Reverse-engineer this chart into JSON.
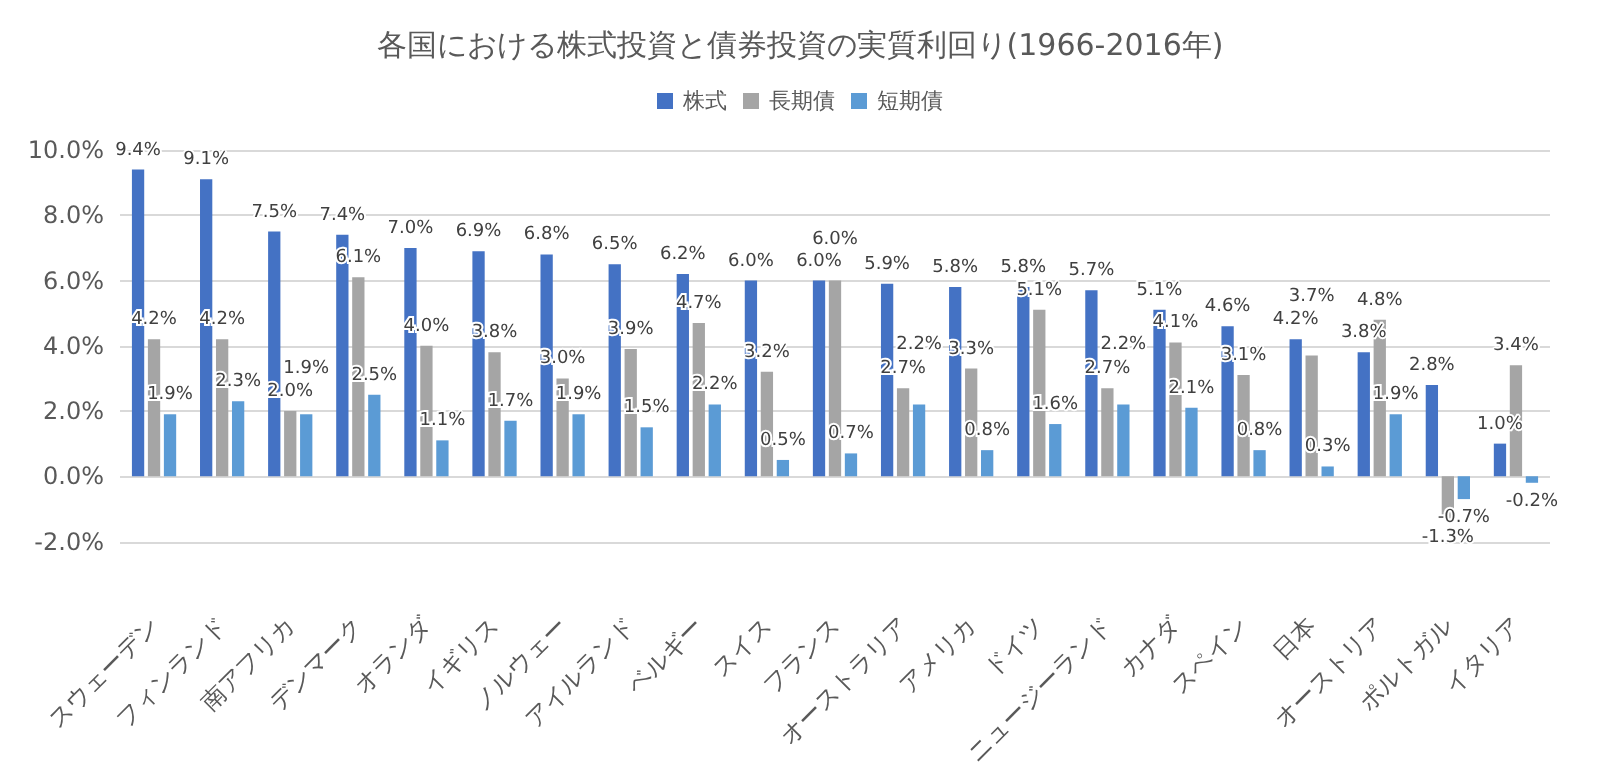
{
  "chart_data": {
    "type": "bar",
    "title": "各国における株式投資と債券投資の実質利回り(1966-2016年)",
    "categories": [
      "スウェーデン",
      "フィンランド",
      "南アフリカ",
      "デンマーク",
      "オランダ",
      "イギリス",
      "ノルウェー",
      "アイルランド",
      "ベルギー",
      "スイス",
      "フランス",
      "オーストラリア",
      "アメリカ",
      "ドイツ",
      "ニュージーランド",
      "カナダ",
      "スペイン",
      "日本",
      "オーストリア",
      "ポルトガル",
      "イタリア"
    ],
    "series": [
      {
        "name": "株式",
        "color": "#4472c4",
        "values": [
          9.4,
          9.1,
          7.5,
          7.4,
          7.0,
          6.9,
          6.8,
          6.5,
          6.2,
          6.0,
          6.0,
          5.9,
          5.8,
          5.8,
          5.7,
          5.1,
          4.6,
          4.2,
          3.8,
          2.8,
          1.0
        ],
        "value_labels": [
          "9.4%",
          "9.1%",
          "7.5%",
          "7.4%",
          "7.0%",
          "6.9%",
          "6.8%",
          "6.5%",
          "6.2%",
          "6.0%",
          "6.0%",
          "5.9%",
          "5.8%",
          "5.8%",
          "5.7%",
          "5.1%",
          "4.6%",
          "4.2%",
          "3.8%",
          "2.8%",
          "1.0%"
        ]
      },
      {
        "name": "長期債",
        "color": "#a5a5a5",
        "values": [
          4.2,
          4.2,
          2.0,
          6.1,
          4.0,
          3.8,
          3.0,
          3.9,
          4.7,
          3.2,
          6.0,
          2.7,
          3.3,
          5.1,
          2.7,
          4.1,
          3.1,
          3.7,
          4.8,
          -1.3,
          3.4
        ],
        "value_labels": [
          "4.2%",
          "4.2%",
          "2.0%",
          "6.1%",
          "4.0%",
          "3.8%",
          "3.0%",
          "3.9%",
          "4.7%",
          "3.2%",
          "6.0%",
          "2.7%",
          "3.3%",
          "5.1%",
          "2.7%",
          "4.1%",
          "3.1%",
          "3.7%",
          "4.8%",
          "-1.3%",
          "3.4%"
        ]
      },
      {
        "name": "短期債",
        "color": "#5b9bd5",
        "values": [
          1.9,
          2.3,
          1.9,
          2.5,
          1.1,
          1.7,
          1.9,
          1.5,
          2.2,
          0.5,
          0.7,
          2.2,
          0.8,
          1.6,
          2.2,
          2.1,
          0.8,
          0.3,
          1.9,
          -0.7,
          -0.2
        ],
        "value_labels": [
          "1.9%",
          "2.3%",
          "1.9%",
          "2.5%",
          "1.1%",
          "1.7%",
          "1.9%",
          "1.5%",
          "2.2%",
          "0.5%",
          "0.7%",
          "2.2%",
          "0.8%",
          "1.6%",
          "2.2%",
          "2.1%",
          "0.8%",
          "0.3%",
          "1.9%",
          "-0.7%",
          "-0.2%"
        ]
      }
    ],
    "ylim": [
      -2,
      10
    ],
    "yticks": [
      {
        "value": -2,
        "label": "-2.0%"
      },
      {
        "value": 0,
        "label": "0.0%"
      },
      {
        "value": 2,
        "label": "2.0%"
      },
      {
        "value": 4,
        "label": "4.0%"
      },
      {
        "value": 6,
        "label": "6.0%"
      },
      {
        "value": 8,
        "label": "8.0%"
      },
      {
        "value": 10,
        "label": "10.0%"
      }
    ],
    "grid": "y",
    "legend": "top"
  }
}
